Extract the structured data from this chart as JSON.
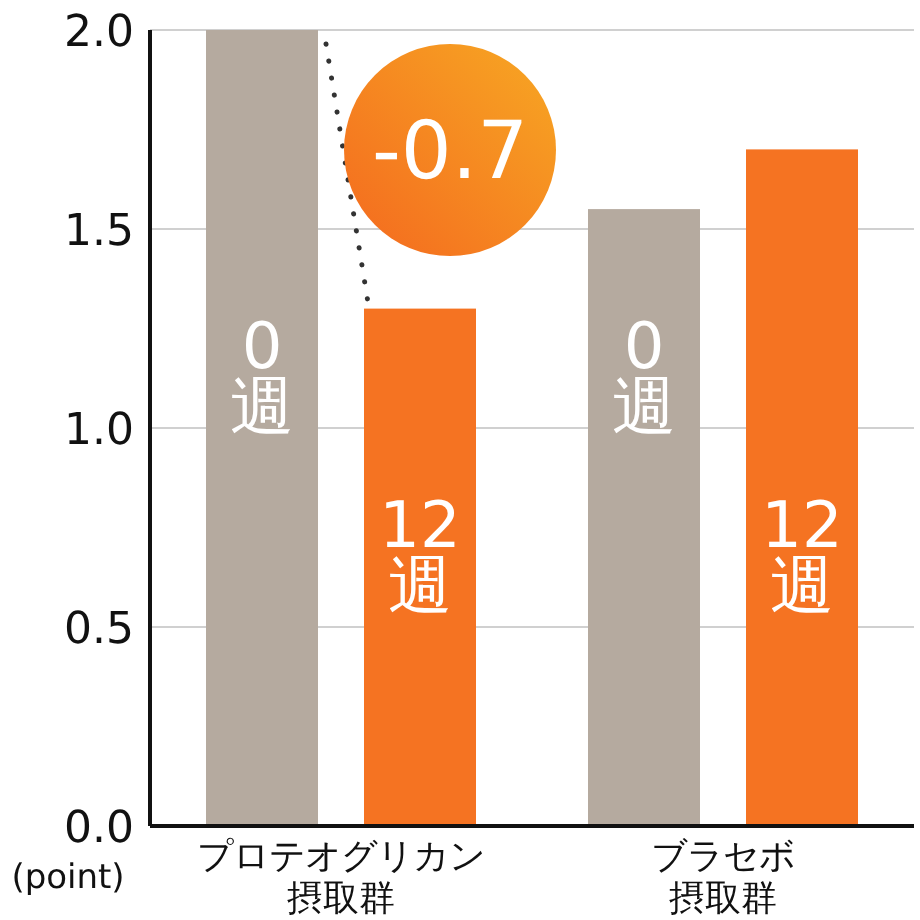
{
  "chart_data": {
    "type": "bar",
    "categories": [
      "プロテオグリカン摂取群",
      "ブラセボ摂取群"
    ],
    "series": [
      {
        "name": "0\n週",
        "color": "#b5aa9f",
        "values": [
          2.0,
          1.55
        ]
      },
      {
        "name": "12\n週",
        "color": "#f57322",
        "values": [
          1.3,
          1.7
        ]
      }
    ],
    "ylim": [
      0,
      2.0
    ],
    "yticks": [
      {
        "value": 0,
        "label": "0.0"
      },
      {
        "value": 0.5,
        "label": "0.5"
      },
      {
        "value": 1.0,
        "label": "1.0"
      },
      {
        "value": 1.5,
        "label": "1.5"
      },
      {
        "value": 2.0,
        "label": "2.0"
      }
    ],
    "ylabel": "(point)",
    "grid": "y",
    "annotations": [
      "-0.7",
      "0\n週",
      "12\n週"
    ]
  }
}
